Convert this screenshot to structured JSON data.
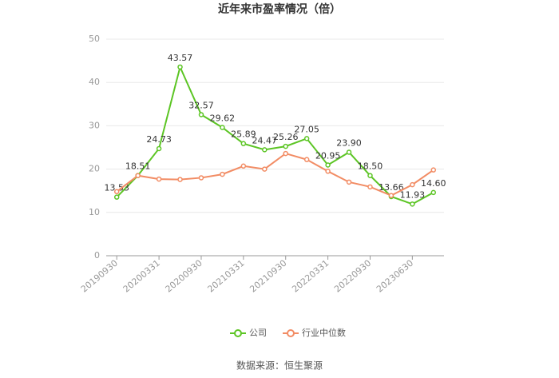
{
  "chart_data": {
    "type": "line",
    "title": "近年来市盈率情况（倍）",
    "source": "数据来源：恒生聚源",
    "categories": [
      "20190930",
      null,
      "20200331",
      null,
      "20200930",
      null,
      "20210331",
      null,
      "20210930",
      null,
      "20220331",
      null,
      "20220930",
      null,
      "20230630",
      null
    ],
    "series": [
      {
        "name": "公司",
        "color": "#5cc524",
        "values": [
          13.53,
          18.51,
          24.73,
          43.57,
          32.57,
          29.62,
          25.89,
          24.47,
          25.26,
          27.05,
          20.95,
          23.9,
          18.5,
          13.66,
          11.93,
          14.6
        ],
        "value_labels": [
          "13.53",
          "18.51",
          "24.73",
          "43.57",
          "32.57",
          "29.62",
          "25.89",
          "24.47",
          "25.26",
          "27.05",
          "20.95",
          "23.90",
          "18.50",
          "13.66",
          "11.93",
          "14.60"
        ]
      },
      {
        "name": "行业中位数",
        "color": "#f28c64",
        "values": [
          14.8,
          18.5,
          17.7,
          17.6,
          18.0,
          18.8,
          20.7,
          20.0,
          23.6,
          22.2,
          19.5,
          17.0,
          15.9,
          13.9,
          16.4,
          19.8
        ]
      }
    ],
    "ylim": [
      0,
      50
    ],
    "yticks": [
      0,
      10,
      20,
      30,
      40,
      50
    ],
    "grid": true,
    "legend": "bottom"
  }
}
